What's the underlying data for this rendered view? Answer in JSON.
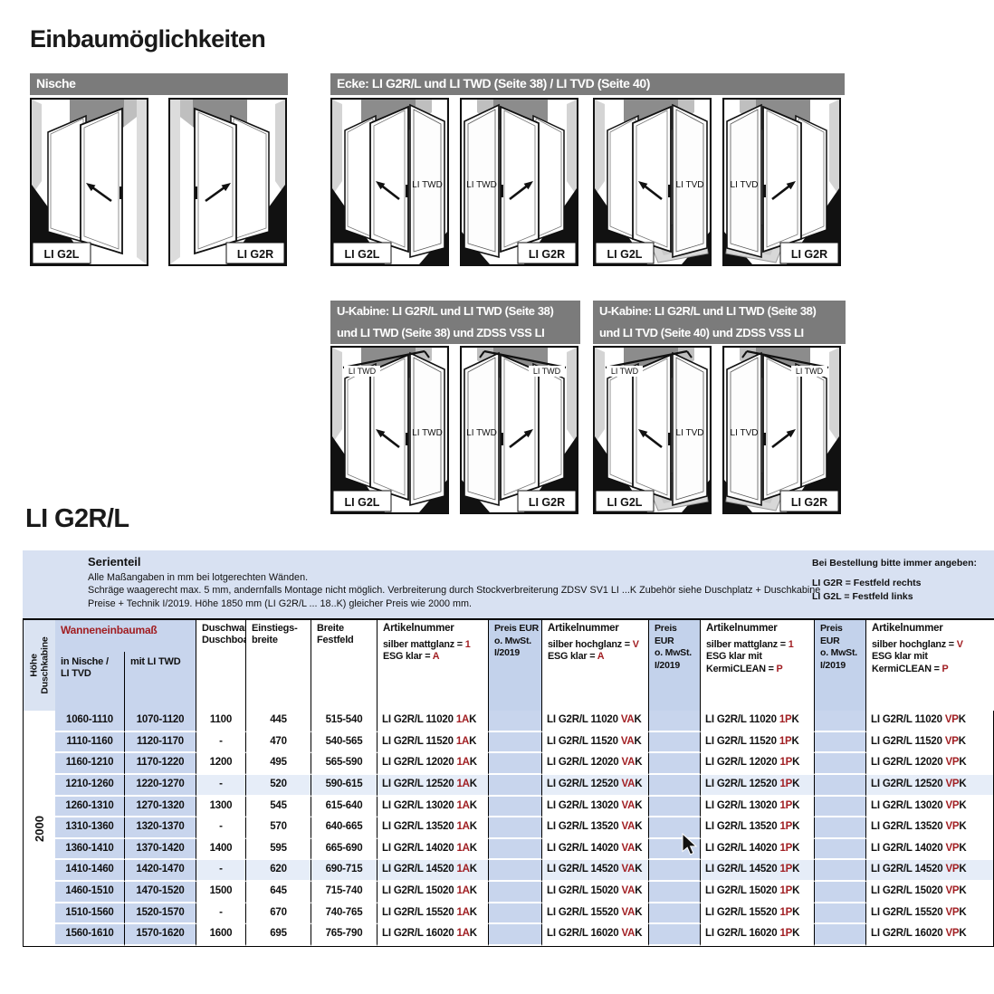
{
  "page": {
    "title": "Einbaumöglichkeiten",
    "product_title": "LI G2R/L"
  },
  "colors": {
    "accent_red": "#a11e22",
    "bar_gray": "#7b7b7b",
    "band_blue": "#d8e1f2",
    "meas_cell_blue": "#c8d5ed",
    "price_cell_blue": "#c3d2eb",
    "shade_blue": "#e6edf8"
  },
  "sections": [
    {
      "name": "nische",
      "bar_lines": [
        "Nische"
      ],
      "diagrams": [
        {
          "label": "LI G2L",
          "mirror": false,
          "side_label": "",
          "top_label": "",
          "tray": false
        },
        {
          "label": "LI G2R",
          "mirror": true,
          "side_label": "",
          "top_label": "",
          "tray": false
        }
      ]
    },
    {
      "name": "ecke",
      "bar_lines": [
        "Ecke: LI G2R/L und LI TWD (Seite 38) / LI TVD (Seite 40)"
      ],
      "diagrams": [
        {
          "label": "LI G2L",
          "mirror": false,
          "side_label": "LI TWD",
          "top_label": "",
          "tray": false
        },
        {
          "label": "LI G2R",
          "mirror": true,
          "side_label": "LI TWD",
          "top_label": "",
          "tray": false
        },
        {
          "label": "LI G2L",
          "mirror": false,
          "side_label": "LI TVD",
          "top_label": "",
          "tray": true
        },
        {
          "label": "LI G2R",
          "mirror": true,
          "side_label": "LI TVD",
          "top_label": "",
          "tray": true
        }
      ]
    },
    {
      "name": "ukabine-twd",
      "bar_lines": [
        "U-Kabine: LI G2R/L und LI TWD (Seite 38)",
        "und LI TWD (Seite 38) und ZDSS VSS LI"
      ],
      "diagrams": [
        {
          "label": "LI G2L",
          "mirror": false,
          "side_label": "LI TWD",
          "top_label": "LI TWD",
          "tray": false
        },
        {
          "label": "LI G2R",
          "mirror": true,
          "side_label": "LI TWD",
          "top_label": "LI TWD",
          "tray": false
        }
      ]
    },
    {
      "name": "ukabine-tvd",
      "bar_lines": [
        "U-Kabine: LI G2R/L und LI TWD (Seite 38)",
        "und LI TVD (Seite 40) und ZDSS VSS LI"
      ],
      "diagrams": [
        {
          "label": "LI G2L",
          "mirror": false,
          "side_label": "LI TVD",
          "top_label": "LI TWD",
          "tray": true
        },
        {
          "label": "LI G2R",
          "mirror": true,
          "side_label": "LI TVD",
          "top_label": "LI TWD",
          "tray": true
        }
      ]
    }
  ],
  "table": {
    "notes": {
      "title": "Serienteil",
      "lines": [
        "Alle Maßangaben in mm bei lotgerechten Wänden.",
        "Schräge waagerecht max. 5 mm, andernfalls Montage nicht möglich. Verbreiterung durch Stockverbreiterung ZDSV SV1 LI ...K Zubehör siehe Duschplatz + Duschkabine",
        "Preise + Technik I/2019. Höhe 1850 mm (LI G2R/L ... 18..K) gleicher Preis wie 2000 mm."
      ],
      "order_title": "Bei Bestellung bitte immer angeben:",
      "order_lines": [
        "LI G2R = Festfeld rechts",
        "LI G2L = Festfeld links"
      ]
    },
    "header": {
      "hoehe_line1": "Höhe",
      "hoehe_line2": "Duschkabine",
      "group": "Wanneneinbaumaß",
      "sub_nische_l1": "in Nische /",
      "sub_nische_l2": "LI TVD",
      "sub_twd": "mit LI TWD",
      "col_duschwanne_l1": "Duschwanne",
      "col_duschwanne_l2": "Duschboard",
      "col_einstieg_l1": "Einstiegs-",
      "col_einstieg_l2": "breite",
      "col_breite_l1": "Breite",
      "col_breite_l2": "Festfeld",
      "artikel_title": "Artikelnummer",
      "preis_lines": [
        "Preis EUR",
        "o. MwSt.",
        "I/2019"
      ],
      "artikel_cols": [
        {
          "lines": [
            {
              "pre": "silber mattglanz = ",
              "val": "1"
            },
            {
              "pre": "ESG klar = ",
              "val": "A"
            }
          ]
        },
        {
          "lines": [
            {
              "pre": "silber hochglanz = ",
              "val": "V"
            },
            {
              "pre": "ESG klar = ",
              "val": "A"
            }
          ]
        },
        {
          "lines": [
            {
              "pre": "silber mattglanz = ",
              "val": "1"
            },
            {
              "pre": "ESG klar mit",
              "val": ""
            },
            {
              "pre": "KermiCLEAN = ",
              "val": "P"
            }
          ]
        },
        {
          "lines": [
            {
              "pre": "silber hochglanz = ",
              "val": "V"
            },
            {
              "pre": "ESG klar mit",
              "val": ""
            },
            {
              "pre": "KermiCLEAN = ",
              "val": "P"
            }
          ]
        }
      ]
    },
    "hoehe_value": "2000",
    "article_prefix": "LI G2R/L",
    "suffixes": [
      {
        "red": "1A",
        "rest": "K"
      },
      {
        "red": "VA",
        "rest": "K"
      },
      {
        "red": "1P",
        "rest": "K"
      },
      {
        "red": "VP",
        "rest": "K"
      }
    ],
    "rows": [
      {
        "nische": "1060-1110",
        "twd": "1070-1120",
        "wanne": "1100",
        "einstieg": "445",
        "breite": "515-540",
        "nr": "11020",
        "shade": false
      },
      {
        "nische": "1110-1160",
        "twd": "1120-1170",
        "wanne": "-",
        "einstieg": "470",
        "breite": "540-565",
        "nr": "11520",
        "shade": false
      },
      {
        "nische": "1160-1210",
        "twd": "1170-1220",
        "wanne": "1200",
        "einstieg": "495",
        "breite": "565-590",
        "nr": "12020",
        "shade": false
      },
      {
        "nische": "1210-1260",
        "twd": "1220-1270",
        "wanne": "-",
        "einstieg": "520",
        "breite": "590-615",
        "nr": "12520",
        "shade": true
      },
      {
        "nische": "1260-1310",
        "twd": "1270-1320",
        "wanne": "1300",
        "einstieg": "545",
        "breite": "615-640",
        "nr": "13020",
        "shade": false
      },
      {
        "nische": "1310-1360",
        "twd": "1320-1370",
        "wanne": "-",
        "einstieg": "570",
        "breite": "640-665",
        "nr": "13520",
        "shade": false
      },
      {
        "nische": "1360-1410",
        "twd": "1370-1420",
        "wanne": "1400",
        "einstieg": "595",
        "breite": "665-690",
        "nr": "14020",
        "shade": false
      },
      {
        "nische": "1410-1460",
        "twd": "1420-1470",
        "wanne": "-",
        "einstieg": "620",
        "breite": "690-715",
        "nr": "14520",
        "shade": true
      },
      {
        "nische": "1460-1510",
        "twd": "1470-1520",
        "wanne": "1500",
        "einstieg": "645",
        "breite": "715-740",
        "nr": "15020",
        "shade": false
      },
      {
        "nische": "1510-1560",
        "twd": "1520-1570",
        "wanne": "-",
        "einstieg": "670",
        "breite": "740-765",
        "nr": "15520",
        "shade": false
      },
      {
        "nische": "1560-1610",
        "twd": "1570-1620",
        "wanne": "1600",
        "einstieg": "695",
        "breite": "765-790",
        "nr": "16020",
        "shade": false
      }
    ]
  }
}
